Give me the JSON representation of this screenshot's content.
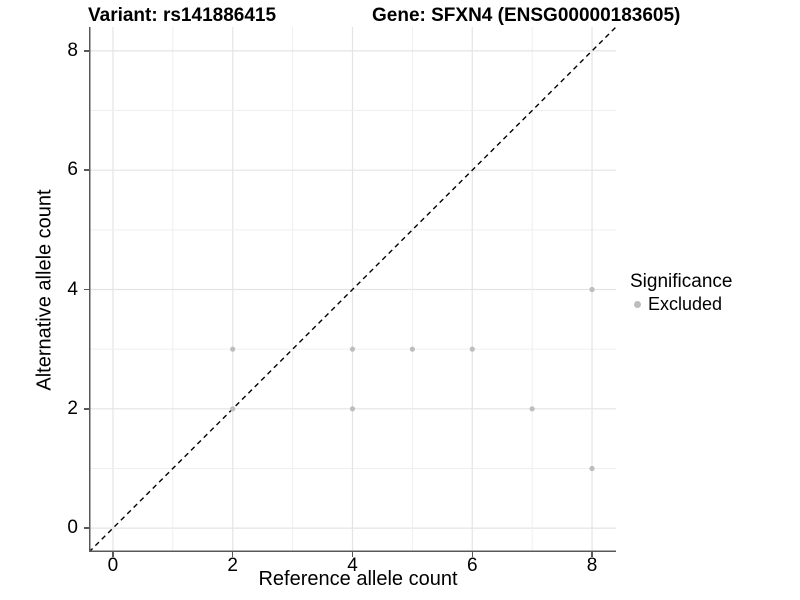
{
  "titles": {
    "variant": "Variant: rs141886415",
    "gene": "Gene: SFXN4 (ENSG00000183605)"
  },
  "axes": {
    "x_label": "Reference allele count",
    "y_label": "Alternative allele count"
  },
  "legend": {
    "title": "Significance",
    "items": [
      {
        "label": "Excluded",
        "color": "#bdbdbd"
      }
    ]
  },
  "colors": {
    "point": "#bdbdbd",
    "grid_major": "#e4e4e4",
    "grid_minor": "#efefef",
    "axis_line": "#585858",
    "reference_line": "#000000",
    "text": "#000000"
  },
  "chart_data": {
    "type": "scatter",
    "title_left": "Variant: rs141886415",
    "title_right": "Gene: SFXN4 (ENSG00000183605)",
    "xlabel": "Reference allele count",
    "ylabel": "Alternative allele count",
    "xlim": [
      -0.4,
      8.4
    ],
    "ylim": [
      -0.4,
      8.4
    ],
    "x_ticks": [
      0,
      2,
      4,
      6,
      8
    ],
    "y_ticks": [
      0,
      2,
      4,
      6,
      8
    ],
    "grid": "major at even integers, minor at odd integers",
    "legend_position": "right",
    "series": [
      {
        "name": "Excluded",
        "color": "#bdbdbd",
        "points": [
          [
            2,
            2
          ],
          [
            2,
            3
          ],
          [
            4,
            2
          ],
          [
            4,
            3
          ],
          [
            5,
            3
          ],
          [
            6,
            3
          ],
          [
            7,
            2
          ],
          [
            8,
            1
          ],
          [
            8,
            4
          ]
        ]
      }
    ],
    "reference_line": {
      "slope": 1,
      "intercept": 0,
      "linetype": "dashed",
      "color": "#000000",
      "meaning": "y = x identity line"
    }
  }
}
